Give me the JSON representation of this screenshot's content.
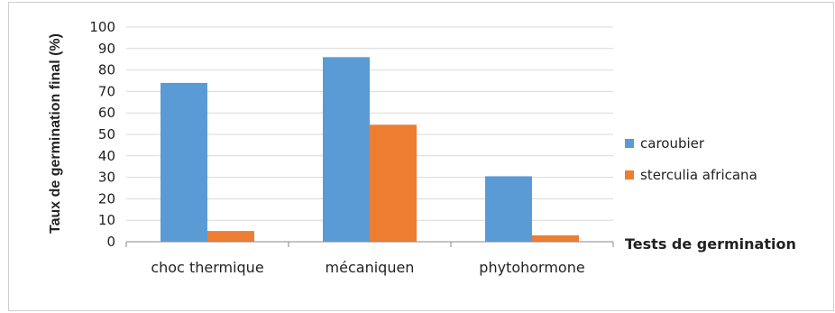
{
  "chart_data": {
    "type": "bar",
    "categories": [
      "choc thermique",
      "mécaniquen",
      "phytohormone"
    ],
    "series": [
      {
        "name": "caroubier",
        "values": [
          74,
          86,
          30.5
        ],
        "color": "#5b9bd5"
      },
      {
        "name": "sterculia africana",
        "values": [
          5,
          54.5,
          3
        ],
        "color": "#ed7d31"
      }
    ],
    "ylabel": "Taux de germination final (%)",
    "xlabel": "Tests de germination",
    "ylim": [
      0,
      100
    ],
    "yticks": [
      0,
      10,
      20,
      30,
      40,
      50,
      60,
      70,
      80,
      90,
      100
    ],
    "grid": true,
    "legend_position": "right"
  }
}
